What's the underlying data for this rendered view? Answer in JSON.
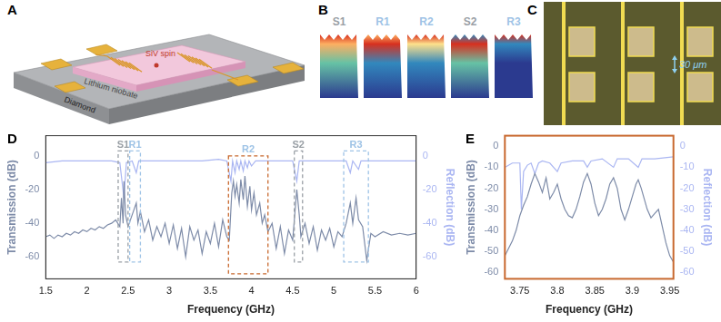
{
  "panel_labels": [
    "A",
    "B",
    "C",
    "D",
    "E"
  ],
  "panels": {
    "A": {
      "texts": {
        "spin": "SiV spin",
        "film": "Lithium niobate",
        "substrate": "Diamond"
      }
    },
    "B": {
      "modes": [
        {
          "name": "S1",
          "color": "#9aa0a6"
        },
        {
          "name": "R1",
          "color": "#9ec3e6"
        },
        {
          "name": "R2",
          "color": "#9ec3e6"
        },
        {
          "name": "S2",
          "color": "#9aa0a6"
        },
        {
          "name": "R3",
          "color": "#9ec3e6"
        }
      ]
    },
    "C": {
      "scale_bar": "30 μm"
    }
  },
  "chart_data": [
    {
      "type": "line",
      "xlabel": "Frequency (GHz)",
      "ylabel": "Transmission (dB)",
      "y2label": "Reflection (dB)",
      "xlim": [
        1.5,
        6
      ],
      "xticks": [
        1.5,
        2,
        2.5,
        3,
        3.5,
        4,
        4.5,
        5,
        5.5,
        6
      ],
      "ylim": [
        -73,
        12
      ],
      "yticks": [
        -60,
        -40,
        -20,
        0
      ],
      "y2lim": [
        -73,
        12
      ],
      "y2ticks": [
        -60,
        -40,
        -20,
        0
      ],
      "grid": false,
      "color": "#333333",
      "series": [
        {
          "name": "Transmission",
          "color": "#7d8ba8",
          "axis": "y",
          "x": [
            1.5,
            1.55,
            1.6,
            1.65,
            1.7,
            1.75,
            1.8,
            1.85,
            1.9,
            1.95,
            2.0,
            2.05,
            2.1,
            2.15,
            2.2,
            2.25,
            2.3,
            2.35,
            2.4,
            2.42,
            2.44,
            2.45,
            2.47,
            2.5,
            2.55,
            2.6,
            2.62,
            2.65,
            2.7,
            2.75,
            2.8,
            2.85,
            2.9,
            2.95,
            3.0,
            3.05,
            3.1,
            3.15,
            3.2,
            3.25,
            3.3,
            3.35,
            3.4,
            3.45,
            3.5,
            3.55,
            3.6,
            3.65,
            3.7,
            3.73,
            3.76,
            3.78,
            3.8,
            3.82,
            3.85,
            3.87,
            3.9,
            3.92,
            3.95,
            3.98,
            4.0,
            4.03,
            4.06,
            4.1,
            4.13,
            4.16,
            4.2,
            4.25,
            4.3,
            4.35,
            4.4,
            4.45,
            4.5,
            4.55,
            4.58,
            4.6,
            4.65,
            4.7,
            4.75,
            4.8,
            4.85,
            4.9,
            4.95,
            5.0,
            5.05,
            5.1,
            5.15,
            5.2,
            5.23,
            5.27,
            5.3,
            5.35,
            5.4,
            5.45,
            5.5,
            5.6,
            5.7,
            5.8,
            5.9,
            6.0
          ],
          "values": [
            -48,
            -47,
            -49,
            -47,
            -48,
            -46,
            -47,
            -45,
            -46,
            -44,
            -45,
            -43,
            -44,
            -42,
            -43,
            -41,
            -40,
            -38,
            -42,
            -25,
            -40,
            -15,
            -35,
            -42,
            -35,
            -28,
            -40,
            -33,
            -45,
            -38,
            -50,
            -42,
            -48,
            -40,
            -52,
            -41,
            -55,
            -43,
            -60,
            -42,
            -50,
            -44,
            -58,
            -45,
            -52,
            -40,
            -54,
            -38,
            -48,
            -50,
            -22,
            -15,
            -24,
            -17,
            -28,
            -14,
            -26,
            -12,
            -30,
            -18,
            -32,
            -22,
            -35,
            -28,
            -40,
            -35,
            -45,
            -40,
            -55,
            -42,
            -58,
            -44,
            -50,
            -20,
            -35,
            -48,
            -40,
            -52,
            -42,
            -56,
            -44,
            -50,
            -43,
            -54,
            -45,
            -48,
            -40,
            -28,
            -40,
            -25,
            -38,
            -42,
            -62,
            -46,
            -48,
            -45,
            -47,
            -46,
            -47,
            -46
          ]
        },
        {
          "name": "Reflection",
          "color": "#aab6f2",
          "axis": "y2",
          "x": [
            1.5,
            1.7,
            1.9,
            2.1,
            2.3,
            2.4,
            2.45,
            2.48,
            2.55,
            2.6,
            2.63,
            2.8,
            3.0,
            3.2,
            3.4,
            3.6,
            3.7,
            3.75,
            3.77,
            3.8,
            3.82,
            3.85,
            3.87,
            3.9,
            3.92,
            3.95,
            3.97,
            4.0,
            4.05,
            4.2,
            4.4,
            4.5,
            4.55,
            4.58,
            4.8,
            5.0,
            5.15,
            5.2,
            5.23,
            5.3,
            5.33,
            5.5,
            5.75,
            6.0
          ],
          "values": [
            -4,
            -3,
            -3,
            -3,
            -3,
            -4,
            -25,
            -4,
            -3,
            -10,
            -3,
            -3,
            -3,
            -3,
            -3,
            -2,
            -3,
            -15,
            -3,
            -10,
            -3,
            -8,
            -3,
            -9,
            -3,
            -7,
            -3,
            -6,
            -3,
            -3,
            -3,
            -3,
            -15,
            -3,
            -3,
            -3,
            -3,
            -10,
            -3,
            -8,
            -3,
            -3,
            -3,
            -3
          ]
        }
      ],
      "regions": [
        {
          "label": "S1",
          "x": [
            2.38,
            2.5
          ],
          "y": [
            -63,
            3
          ],
          "color": "#9aa0a6"
        },
        {
          "label": "R1",
          "x": [
            2.52,
            2.65
          ],
          "y": [
            -63,
            3
          ],
          "color": "#9ec3e6"
        },
        {
          "label": "R2",
          "x": [
            3.72,
            4.2
          ],
          "y": [
            -70,
            0
          ],
          "color": "#c8692f"
        },
        {
          "label": "S2",
          "x": [
            4.52,
            4.62
          ],
          "y": [
            -63,
            3
          ],
          "color": "#9aa0a6"
        },
        {
          "label": "R3",
          "x": [
            5.12,
            5.42
          ],
          "y": [
            -63,
            3
          ],
          "color": "#9ec3e6"
        }
      ]
    },
    {
      "type": "line",
      "xlabel": "Frequency (GHz)",
      "ylabel": "Transmission (dB)",
      "y2label": "Reflection (dB)",
      "xlim": [
        3.73,
        3.955
      ],
      "xticks": [
        3.75,
        3.8,
        3.85,
        3.9,
        3.95
      ],
      "ylim": [
        -63,
        5
      ],
      "yticks": [
        -60,
        -50,
        -40,
        -30,
        -20,
        -10,
        0
      ],
      "y2lim": [
        -63,
        5
      ],
      "y2ticks": [
        -60,
        -50,
        -40,
        -30,
        -20,
        -10,
        0
      ],
      "grid": false,
      "color": "#c8692f",
      "series": [
        {
          "name": "Transmission",
          "color": "#7d8ba8",
          "axis": "y",
          "x": [
            3.73,
            3.74,
            3.745,
            3.75,
            3.755,
            3.76,
            3.765,
            3.77,
            3.775,
            3.78,
            3.785,
            3.79,
            3.795,
            3.8,
            3.805,
            3.81,
            3.815,
            3.82,
            3.825,
            3.83,
            3.835,
            3.84,
            3.845,
            3.85,
            3.855,
            3.86,
            3.865,
            3.87,
            3.875,
            3.88,
            3.885,
            3.89,
            3.895,
            3.9,
            3.905,
            3.908,
            3.912,
            3.92,
            3.925,
            3.93,
            3.935,
            3.94,
            3.945,
            3.95,
            3.955
          ],
          "values": [
            -52,
            -45,
            -40,
            -33,
            -28,
            -24,
            -18,
            -13,
            -17,
            -22,
            -15,
            -25,
            -22,
            -18,
            -25,
            -30,
            -33,
            -34,
            -30,
            -24,
            -17,
            -13,
            -18,
            -27,
            -33,
            -30,
            -25,
            -18,
            -15,
            -20,
            -30,
            -35,
            -30,
            -24,
            -18,
            -16,
            -20,
            -30,
            -34,
            -32,
            -30,
            -38,
            -46,
            -52,
            -55
          ]
        },
        {
          "name": "Reflection",
          "color": "#aab6f2",
          "axis": "y2",
          "x": [
            3.73,
            3.74,
            3.75,
            3.752,
            3.755,
            3.76,
            3.765,
            3.77,
            3.775,
            3.78,
            3.79,
            3.8,
            3.805,
            3.82,
            3.835,
            3.84,
            3.845,
            3.86,
            3.875,
            3.88,
            3.895,
            3.908,
            3.913,
            3.93,
            3.955
          ],
          "values": [
            -10,
            -8,
            -8,
            -30,
            -12,
            -9,
            -8,
            -13,
            -8,
            -7,
            -8,
            -12,
            -8,
            -7,
            -7,
            -10,
            -7,
            -6,
            -10,
            -6,
            -6,
            -10,
            -6,
            -6,
            -5
          ]
        }
      ]
    }
  ]
}
